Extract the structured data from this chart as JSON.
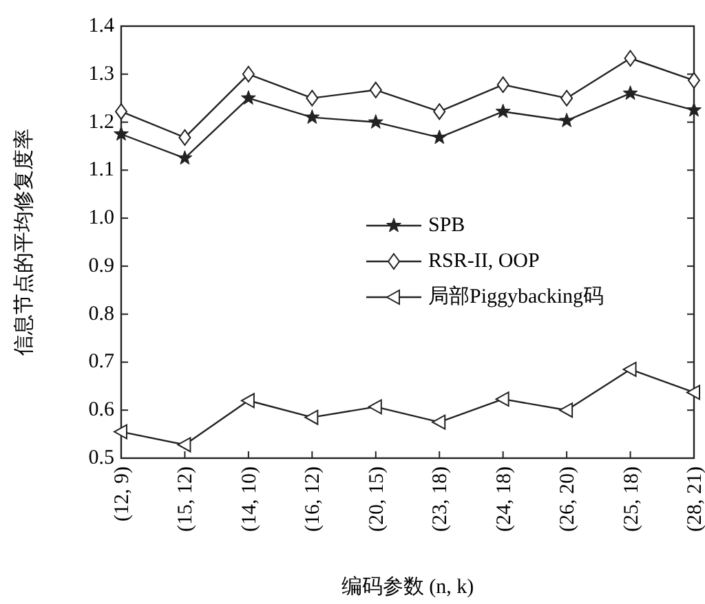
{
  "chart_data": {
    "type": "line",
    "xlabel": "编码参数 (n, k)",
    "ylabel": "信息节点的平均修复度率",
    "categories": [
      "(12, 9)",
      "(15, 12)",
      "(14, 10)",
      "(16, 12)",
      "(20, 15)",
      "(23, 18)",
      "(24, 18)",
      "(26, 20)",
      "(25, 18)",
      "(28, 21)"
    ],
    "series": [
      {
        "name": "SPB",
        "color": "#222222",
        "marker": "star",
        "values": [
          1.175,
          1.125,
          1.25,
          1.21,
          1.2,
          1.168,
          1.222,
          1.203,
          1.26,
          1.225
        ]
      },
      {
        "name": "RSR-II, OOP",
        "color": "#222222",
        "marker": "diamond",
        "values": [
          1.222,
          1.168,
          1.3,
          1.25,
          1.267,
          1.222,
          1.278,
          1.25,
          1.333,
          1.287
        ]
      },
      {
        "name": "局部Piggybacking码",
        "color": "#222222",
        "marker": "triangle",
        "values": [
          0.555,
          0.528,
          0.62,
          0.585,
          0.607,
          0.575,
          0.623,
          0.6,
          0.685,
          0.637
        ]
      }
    ],
    "ylim": [
      0.5,
      1.4
    ],
    "yticks": [
      {
        "value": 0.5,
        "label": "0.5"
      },
      {
        "value": 0.6,
        "label": "0.6"
      },
      {
        "value": 0.7,
        "label": "0.7"
      },
      {
        "value": 0.8,
        "label": "0.8"
      },
      {
        "value": 0.9,
        "label": "0.9"
      },
      {
        "value": 1.0,
        "label": "1.0"
      },
      {
        "value": 1.1,
        "label": "1.1"
      },
      {
        "value": 1.2,
        "label": "1.2"
      },
      {
        "value": 1.3,
        "label": "1.3"
      },
      {
        "value": 1.4,
        "label": "1.4"
      }
    ],
    "grid": false,
    "legend": "right",
    "line_style": "solid"
  }
}
